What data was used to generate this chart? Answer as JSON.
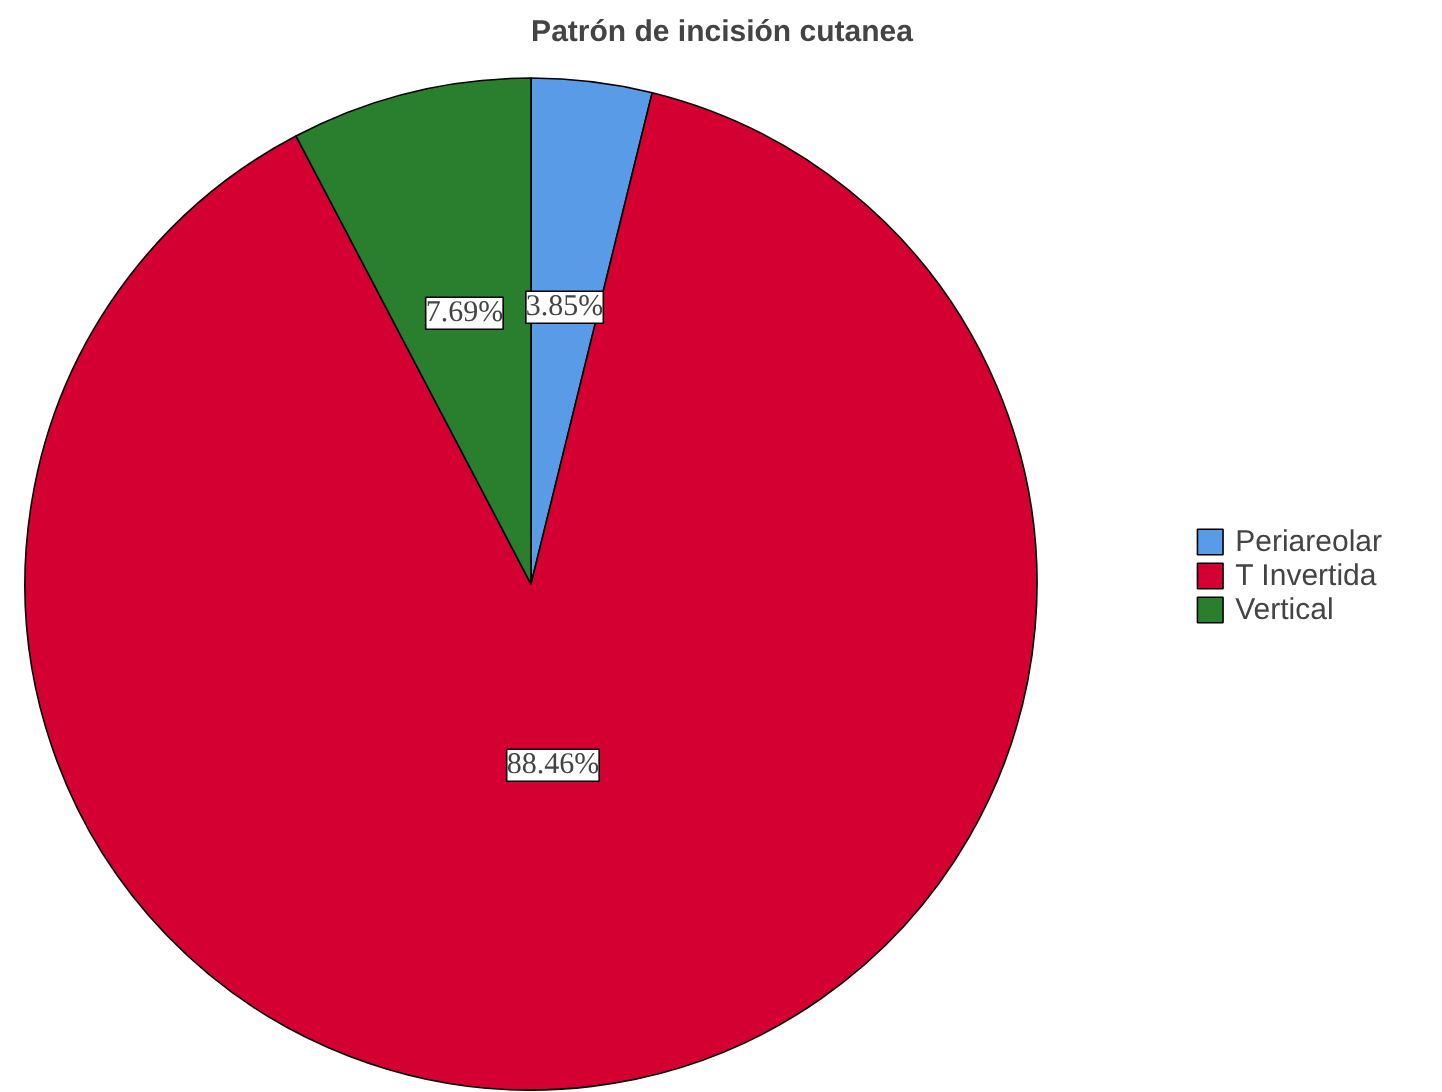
{
  "chart_data": {
    "type": "pie",
    "title": "Patrón de incisión cutanea",
    "categories": [
      "Periareolar",
      "T Invertida",
      "Vertical"
    ],
    "values": [
      3.85,
      88.46,
      7.69
    ],
    "colors": [
      "#5a9be8",
      "#d40032",
      "#2a7f2e"
    ],
    "value_labels": [
      "3.85%",
      "88.46%",
      "7.69%"
    ],
    "legend": "right"
  }
}
